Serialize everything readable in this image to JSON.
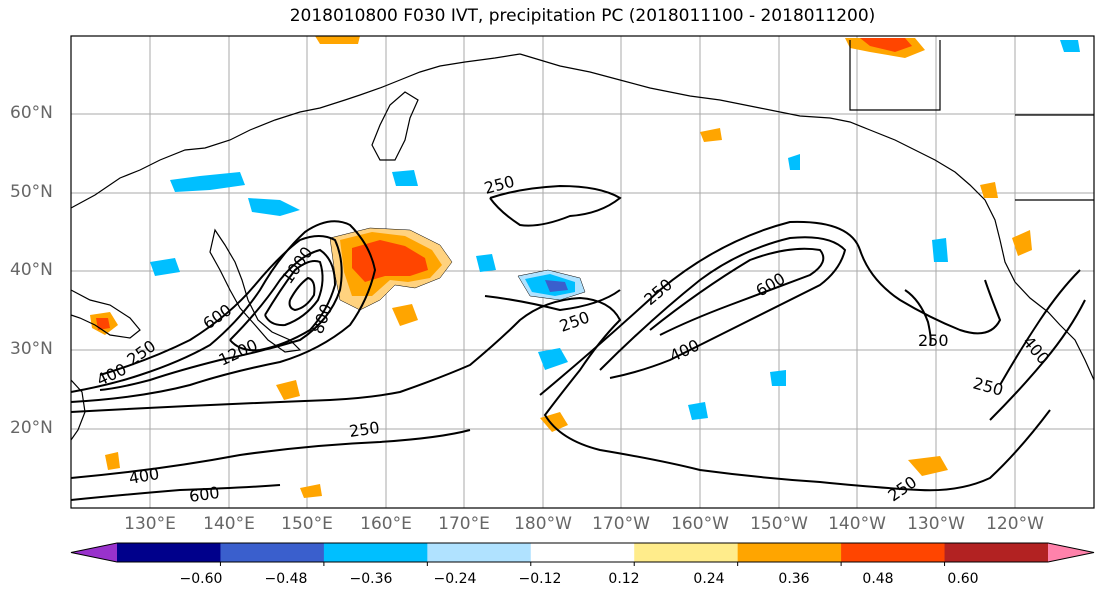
{
  "title": "2018010800 F030 IVT, precipitation PC (2018011100 - 2018011200)",
  "lat_labels": [
    "60°N",
    "50°N",
    "40°N",
    "30°N",
    "20°N"
  ],
  "lon_labels": [
    "130°E",
    "140°E",
    "150°E",
    "160°E",
    "170°E",
    "180°W",
    "170°W",
    "160°W",
    "150°W",
    "140°W",
    "130°W",
    "120°W"
  ],
  "contour_labels": [
    "250",
    "250",
    "250",
    "250",
    "250",
    "250",
    "250",
    "250",
    "400",
    "400",
    "400",
    "400",
    "600",
    "600",
    "600",
    "800",
    "1000",
    "1200"
  ],
  "colorbar": {
    "colors": [
      "#9932cc",
      "#00008b",
      "#3a5fcd",
      "#00bfff",
      "#b0e2ff",
      "#ffffff",
      "#ffec8b",
      "#ffa500",
      "#ff4500",
      "#b22222",
      "#ff82ab"
    ],
    "ticks": [
      "−0.60",
      "−0.48",
      "−0.36",
      "−0.24",
      "−0.12",
      "0.12",
      "0.24",
      "0.36",
      "0.48",
      "0.60"
    ]
  }
}
